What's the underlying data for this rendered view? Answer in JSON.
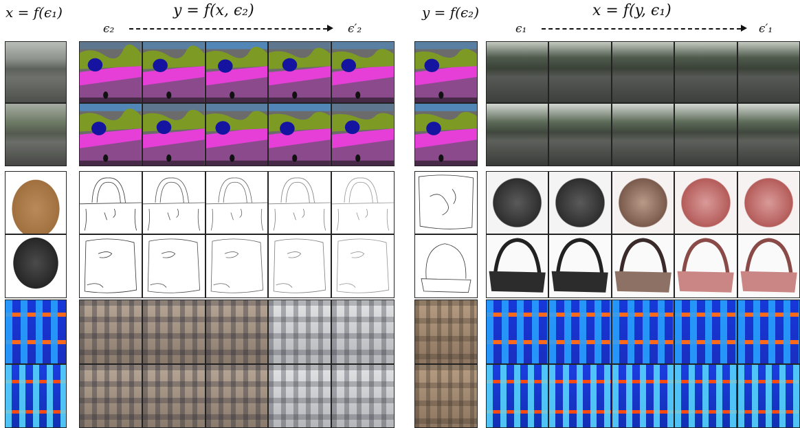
{
  "labels": {
    "left_input": "x = f(ϵ₁)",
    "left_output": "y = f(x, ϵ₂)",
    "left_from": "ϵ₂",
    "left_to": "ϵ′₂",
    "right_input": "y = f(ϵ₂)",
    "right_output": "x = f(y, ϵ₁)",
    "right_from": "ϵ₁",
    "right_to": "ϵ′₁"
  },
  "colors": {
    "seg_road": "#8a4a8c",
    "seg_sidewalk": "#e53fd8",
    "seg_vegetation": "#7d9a25",
    "seg_sky": "#4a8fd0",
    "seg_car": "#1414a0",
    "seg_building": "#6b6b6b"
  },
  "rows": [
    {
      "name": "street-1",
      "left_input": "photo-street",
      "left_gen": "seg",
      "right_input": "seg",
      "right_gen": "gen-street"
    },
    {
      "name": "street-2",
      "left_input": "photo-street-b",
      "left_gen": "seg",
      "right_input": "seg",
      "right_gen": "gen-street-b"
    },
    {
      "name": "bag-1",
      "left_input": "bag-brown",
      "left_gen": "edge",
      "right_input": "edge",
      "right_gen": "gen-bag-top"
    },
    {
      "name": "bag-2",
      "left_input": "bag-black",
      "left_gen": "edge",
      "right_input": "edge",
      "right_gen": "gen-bag-bot"
    },
    {
      "name": "facade-1",
      "left_input": "labelmap",
      "left_gen": "facade-1",
      "right_input": "facade-photo",
      "right_gen": "labelmap"
    },
    {
      "name": "facade-2",
      "left_input": "labelmap-b",
      "left_gen": "facade-2",
      "right_input": "facade-photo",
      "right_gen": "labelmap-b"
    }
  ],
  "generated_per_row": 5
}
